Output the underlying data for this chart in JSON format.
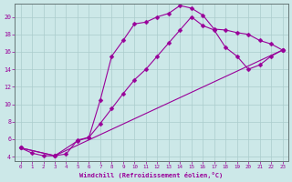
{
  "xlabel": "Windchill (Refroidissement éolien,°C)",
  "background_color": "#cce8e8",
  "grid_color": "#aacccc",
  "line_color": "#990099",
  "spine_color": "#667777",
  "xlim": [
    -0.5,
    23.5
  ],
  "ylim": [
    3.5,
    21.5
  ],
  "xticks": [
    0,
    1,
    2,
    3,
    4,
    5,
    6,
    7,
    8,
    9,
    10,
    11,
    12,
    13,
    14,
    15,
    16,
    17,
    18,
    19,
    20,
    21,
    22,
    23
  ],
  "yticks": [
    4,
    6,
    8,
    10,
    12,
    14,
    16,
    18,
    20
  ],
  "line1_x": [
    0,
    1,
    2,
    3,
    4,
    5,
    6,
    7,
    8,
    9,
    10,
    11,
    12,
    13,
    14,
    15,
    16,
    17,
    18,
    19,
    20,
    21,
    22,
    23
  ],
  "line1_y": [
    5.0,
    4.4,
    4.1,
    4.1,
    4.3,
    5.9,
    6.2,
    10.5,
    15.5,
    17.3,
    19.2,
    19.4,
    20.0,
    20.4,
    21.3,
    21.0,
    20.2,
    18.6,
    18.5,
    18.2,
    18.0,
    17.3,
    16.9,
    16.2
  ],
  "line2_x": [
    0,
    3,
    5,
    6,
    7,
    8,
    9,
    10,
    11,
    12,
    13,
    14,
    15,
    16,
    17,
    18,
    19,
    20,
    21,
    22,
    23
  ],
  "line2_y": [
    5.0,
    4.1,
    5.8,
    6.2,
    7.8,
    9.5,
    11.2,
    12.8,
    14.0,
    15.5,
    17.0,
    18.5,
    20.0,
    19.0,
    18.5,
    16.5,
    15.5,
    14.0,
    14.5,
    15.5,
    16.2
  ],
  "line3_x": [
    0,
    3,
    23
  ],
  "line3_y": [
    5.0,
    4.1,
    16.2
  ]
}
